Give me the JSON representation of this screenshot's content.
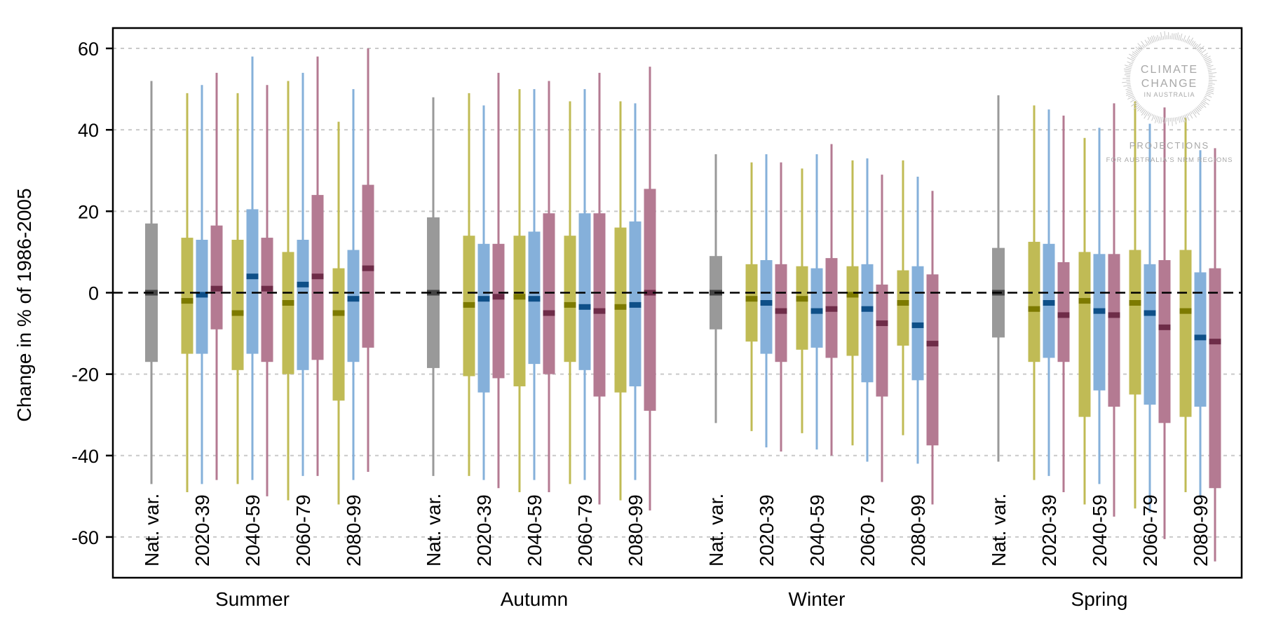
{
  "chart_data": {
    "type": "box",
    "ylabel": "Change in % of 1986-2005",
    "ylim": [
      -70,
      65
    ],
    "yticks": [
      -60,
      -40,
      -20,
      0,
      20,
      40,
      60
    ],
    "grid": true,
    "reference_line": 0,
    "groups": [
      "Summer",
      "Autumn",
      "Winter",
      "Spring"
    ],
    "periods": [
      "Nat. var.",
      "2020-39",
      "2040-59",
      "2060-79",
      "2080-99"
    ],
    "series": [
      {
        "color": "#c0bb55",
        "median_color": "#7d7a00"
      },
      {
        "color": "#85b0da",
        "median_color": "#0e4f88"
      },
      {
        "color": "#b47a92",
        "median_color": "#6e2c48"
      }
    ],
    "natvar_style": {
      "color": "#999999",
      "median_color": "#444444"
    },
    "boxes": {
      "Summer": {
        "natvar": {
          "wlo": -47,
          "q1": -17,
          "med": 0,
          "q3": 17,
          "whi": 52
        },
        "2020-39": [
          {
            "wlo": -49,
            "q1": -15,
            "med": -2,
            "q3": 13.5,
            "whi": 49
          },
          {
            "wlo": -47,
            "q1": -15,
            "med": -0.5,
            "q3": 13,
            "whi": 51
          },
          {
            "wlo": -46,
            "q1": -9,
            "med": 1,
            "q3": 16.5,
            "whi": 54
          }
        ],
        "2040-59": [
          {
            "wlo": -47,
            "q1": -19,
            "med": -5,
            "q3": 13,
            "whi": 49
          },
          {
            "wlo": -46,
            "q1": -15,
            "med": 4,
            "q3": 20.5,
            "whi": 58
          },
          {
            "wlo": -50,
            "q1": -17,
            "med": 1,
            "q3": 13.5,
            "whi": 51
          }
        ],
        "2060-79": [
          {
            "wlo": -51,
            "q1": -20,
            "med": -2.5,
            "q3": 10,
            "whi": 52
          },
          {
            "wlo": -45,
            "q1": -19,
            "med": 2,
            "q3": 13,
            "whi": 54
          },
          {
            "wlo": -45,
            "q1": -16.5,
            "med": 4,
            "q3": 24,
            "whi": 58
          }
        ],
        "2080-99": [
          {
            "wlo": -52,
            "q1": -26.5,
            "med": -5,
            "q3": 6,
            "whi": 42
          },
          {
            "wlo": -46,
            "q1": -17,
            "med": -1.5,
            "q3": 10.5,
            "whi": 50
          },
          {
            "wlo": -44,
            "q1": -13.5,
            "med": 6,
            "q3": 26.5,
            "whi": 60
          }
        ]
      },
      "Autumn": {
        "natvar": {
          "wlo": -45,
          "q1": -18.5,
          "med": 0,
          "q3": 18.5,
          "whi": 48
        },
        "2020-39": [
          {
            "wlo": -45,
            "q1": -20.5,
            "med": -3,
            "q3": 14,
            "whi": 49
          },
          {
            "wlo": -46,
            "q1": -24.5,
            "med": -1.5,
            "q3": 12,
            "whi": 46
          },
          {
            "wlo": -48,
            "q1": -21,
            "med": -1,
            "q3": 12,
            "whi": 54
          }
        ],
        "2040-59": [
          {
            "wlo": -49,
            "q1": -23,
            "med": -1,
            "q3": 14,
            "whi": 50
          },
          {
            "wlo": -46,
            "q1": -17.5,
            "med": -1.5,
            "q3": 15,
            "whi": 50
          },
          {
            "wlo": -49,
            "q1": -20,
            "med": -5,
            "q3": 19.5,
            "whi": 52
          }
        ],
        "2060-79": [
          {
            "wlo": -47,
            "q1": -17,
            "med": -3,
            "q3": 14,
            "whi": 47
          },
          {
            "wlo": -46,
            "q1": -19,
            "med": -3.5,
            "q3": 19.5,
            "whi": 50
          },
          {
            "wlo": -52,
            "q1": -25.5,
            "med": -4.5,
            "q3": 19.5,
            "whi": 54
          }
        ],
        "2080-99": [
          {
            "wlo": -51,
            "q1": -24.5,
            "med": -3.5,
            "q3": 16,
            "whi": 47
          },
          {
            "wlo": -46,
            "q1": -23,
            "med": -3,
            "q3": 17.5,
            "whi": 46.5
          },
          {
            "wlo": -53.5,
            "q1": -29,
            "med": 0,
            "q3": 25.5,
            "whi": 55.5
          }
        ]
      },
      "Winter": {
        "natvar": {
          "wlo": -32,
          "q1": -9,
          "med": 0,
          "q3": 9,
          "whi": 34
        },
        "2020-39": [
          {
            "wlo": -34,
            "q1": -12,
            "med": -1.5,
            "q3": 7,
            "whi": 32
          },
          {
            "wlo": -38,
            "q1": -15,
            "med": -2.5,
            "q3": 8,
            "whi": 34
          },
          {
            "wlo": -39,
            "q1": -17,
            "med": -4.5,
            "q3": 7,
            "whi": 32
          }
        ],
        "2040-59": [
          {
            "wlo": -34.5,
            "q1": -14,
            "med": -1.5,
            "q3": 6.5,
            "whi": 30.5
          },
          {
            "wlo": -38.5,
            "q1": -13.5,
            "med": -4.5,
            "q3": 6,
            "whi": 34
          },
          {
            "wlo": -40,
            "q1": -16,
            "med": -4,
            "q3": 8.5,
            "whi": 36.5
          }
        ],
        "2060-79": [
          {
            "wlo": -37.5,
            "q1": -15.5,
            "med": -0.5,
            "q3": 6.5,
            "whi": 32.5
          },
          {
            "wlo": -41.5,
            "q1": -22,
            "med": -4,
            "q3": 7,
            "whi": 33
          },
          {
            "wlo": -46.5,
            "q1": -25.5,
            "med": -7.5,
            "q3": 2,
            "whi": 29
          }
        ],
        "2080-99": [
          {
            "wlo": -35,
            "q1": -13,
            "med": -2.5,
            "q3": 5.5,
            "whi": 32.5
          },
          {
            "wlo": -42,
            "q1": -21.5,
            "med": -8,
            "q3": 6.5,
            "whi": 28.5
          },
          {
            "wlo": -52,
            "q1": -37.5,
            "med": -12.5,
            "q3": 4.5,
            "whi": 25
          }
        ]
      },
      "Spring": {
        "natvar": {
          "wlo": -41.5,
          "q1": -11,
          "med": 0,
          "q3": 11,
          "whi": 48.5
        },
        "2020-39": [
          {
            "wlo": -46,
            "q1": -17,
            "med": -4,
            "q3": 12.5,
            "whi": 46
          },
          {
            "wlo": -45,
            "q1": -16,
            "med": -2.5,
            "q3": 12,
            "whi": 45
          },
          {
            "wlo": -49,
            "q1": -17,
            "med": -5.5,
            "q3": 7.5,
            "whi": 43.5
          }
        ],
        "2040-59": [
          {
            "wlo": -52,
            "q1": -30.5,
            "med": -2,
            "q3": 10,
            "whi": 38
          },
          {
            "wlo": -47,
            "q1": -24,
            "med": -4.5,
            "q3": 9.5,
            "whi": 40.5
          },
          {
            "wlo": -55,
            "q1": -28,
            "med": -5.5,
            "q3": 9.5,
            "whi": 46.5
          }
        ],
        "2060-79": [
          {
            "wlo": -53,
            "q1": -25,
            "med": -2.5,
            "q3": 10.5,
            "whi": 47
          },
          {
            "wlo": -54,
            "q1": -27.5,
            "med": -5,
            "q3": 7,
            "whi": 41.5
          },
          {
            "wlo": -60.5,
            "q1": -32,
            "med": -8.5,
            "q3": 8,
            "whi": 45.5
          }
        ],
        "2080-99": [
          {
            "wlo": -49,
            "q1": -30.5,
            "med": -4.5,
            "q3": 10.5,
            "whi": 43
          },
          {
            "wlo": -50,
            "q1": -28,
            "med": -11,
            "q3": 5,
            "whi": 35
          },
          {
            "wlo": -66,
            "q1": -48,
            "med": -12,
            "q3": 6,
            "whi": 35.5
          }
        ]
      }
    }
  },
  "watermark": {
    "line1": "CLIMATE",
    "line2": "CHANGE",
    "line3": "IN AUSTRALIA",
    "line4": "PROJECTIONS",
    "line5": "FOR AUSTRALIA'S NRM REGIONS"
  }
}
